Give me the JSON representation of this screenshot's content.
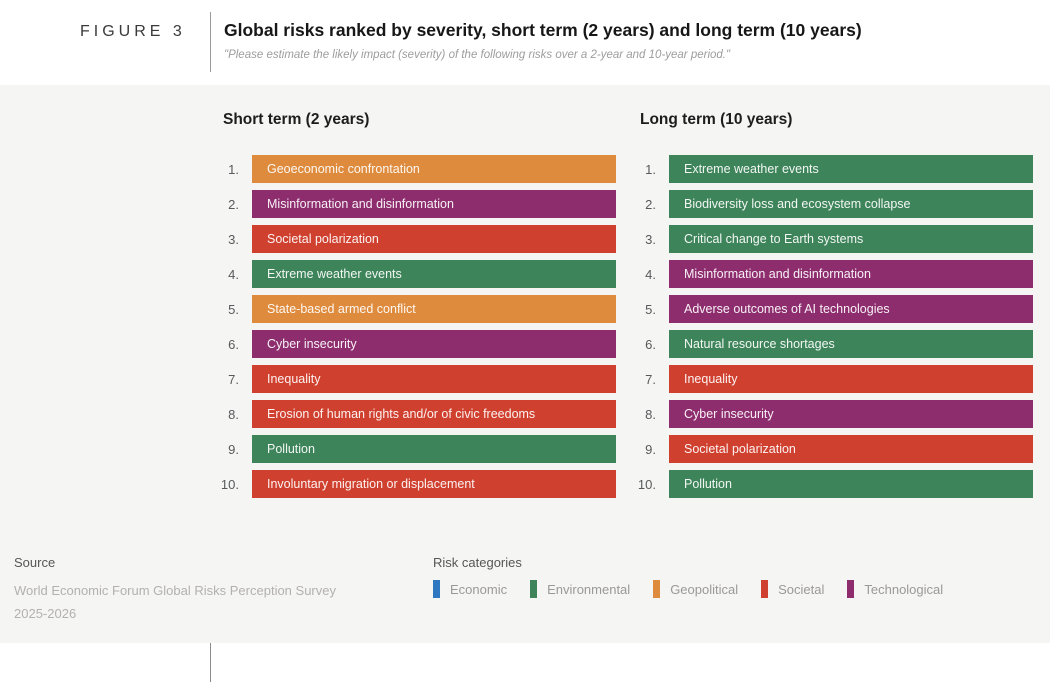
{
  "header": {
    "figure_label": "FIGURE 3",
    "title": "Global risks ranked by severity, short term (2 years) and long term (10 years)",
    "subtitle": "\"Please estimate the likely impact (severity) of the following risks over a 2-year and 10-year period.\""
  },
  "chart_data": {
    "type": "table",
    "title": "Global risks ranked by severity, short term (2 years) and long term (10 years)",
    "categories": {
      "Economic": "#2E78C2",
      "Environmental": "#3E845A",
      "Geopolitical": "#DF8B3D",
      "Societal": "#D0402F",
      "Technological": "#8E2D6E"
    },
    "lists": [
      {
        "heading": "Short term (2 years)",
        "items": [
          {
            "rank": "1.",
            "label": "Geoeconomic confrontation",
            "category": "Geopolitical"
          },
          {
            "rank": "2.",
            "label": "Misinformation and disinformation",
            "category": "Technological"
          },
          {
            "rank": "3.",
            "label": "Societal polarization",
            "category": "Societal"
          },
          {
            "rank": "4.",
            "label": "Extreme weather events",
            "category": "Environmental"
          },
          {
            "rank": "5.",
            "label": "State-based armed conflict",
            "category": "Geopolitical"
          },
          {
            "rank": "6.",
            "label": "Cyber insecurity",
            "category": "Technological"
          },
          {
            "rank": "7.",
            "label": "Inequality",
            "category": "Societal"
          },
          {
            "rank": "8.",
            "label": "Erosion of human rights and/or of civic freedoms",
            "category": "Societal"
          },
          {
            "rank": "9.",
            "label": "Pollution",
            "category": "Environmental"
          },
          {
            "rank": "10.",
            "label": "Involuntary migration or displacement",
            "category": "Societal"
          }
        ]
      },
      {
        "heading": "Long term (10 years)",
        "items": [
          {
            "rank": "1.",
            "label": "Extreme weather events",
            "category": "Environmental"
          },
          {
            "rank": "2.",
            "label": "Biodiversity loss and ecosystem collapse",
            "category": "Environmental"
          },
          {
            "rank": "3.",
            "label": "Critical change to Earth systems",
            "category": "Environmental"
          },
          {
            "rank": "4.",
            "label": "Misinformation and disinformation",
            "category": "Technological"
          },
          {
            "rank": "5.",
            "label": "Adverse outcomes of AI technologies",
            "category": "Technological"
          },
          {
            "rank": "6.",
            "label": "Natural resource shortages",
            "category": "Environmental"
          },
          {
            "rank": "7.",
            "label": "Inequality",
            "category": "Societal"
          },
          {
            "rank": "8.",
            "label": "Cyber insecurity",
            "category": "Technological"
          },
          {
            "rank": "9.",
            "label": "Societal polarization",
            "category": "Societal"
          },
          {
            "rank": "10.",
            "label": "Pollution",
            "category": "Environmental"
          }
        ]
      }
    ]
  },
  "footer": {
    "source_label": "Source",
    "source_lines": [
      "World Economic Forum Global Risks Perception Survey",
      "2025-2026"
    ],
    "legend_title": "Risk categories"
  }
}
